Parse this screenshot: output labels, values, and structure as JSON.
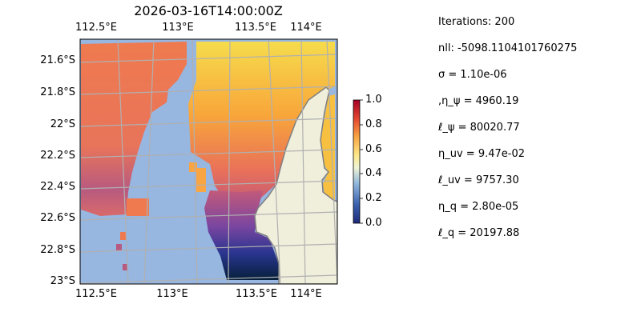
{
  "title": "2026-03-16T14:00:00Z",
  "map": {
    "lon_ticks_top": [
      "112.5°E",
      "113°E",
      "113.5°E",
      "114°E"
    ],
    "lon_ticks_bottom": [
      "112.5°E",
      "113°E",
      "113.5°E",
      "114°E"
    ],
    "lat_ticks": [
      "21.6°S",
      "21.8°S",
      "22°S",
      "22.2°S",
      "22.4°S",
      "22.6°S",
      "22.8°S",
      "23°S"
    ],
    "colors": {
      "ocean": "#97b6e0",
      "land": "#f0efdc",
      "coastline": "#808080",
      "grid": "#b0b0b0"
    }
  },
  "colorbar": {
    "ticks": [
      "0.0",
      "0.2",
      "0.4",
      "0.6",
      "0.8",
      "1.0"
    ],
    "range": [
      0,
      1
    ]
  },
  "info": [
    "Iterations: 200",
    "nll: -5098.1104101760275",
    "σ = 1.10e-06",
    ",η_ψ = 4960.19",
    "ℓ_ψ = 80020.77",
    "η_uv = 9.47e-02",
    "ℓ_uv = 9757.30",
    "η_q = 2.80e-05",
    "ℓ_q = 20197.88"
  ]
}
